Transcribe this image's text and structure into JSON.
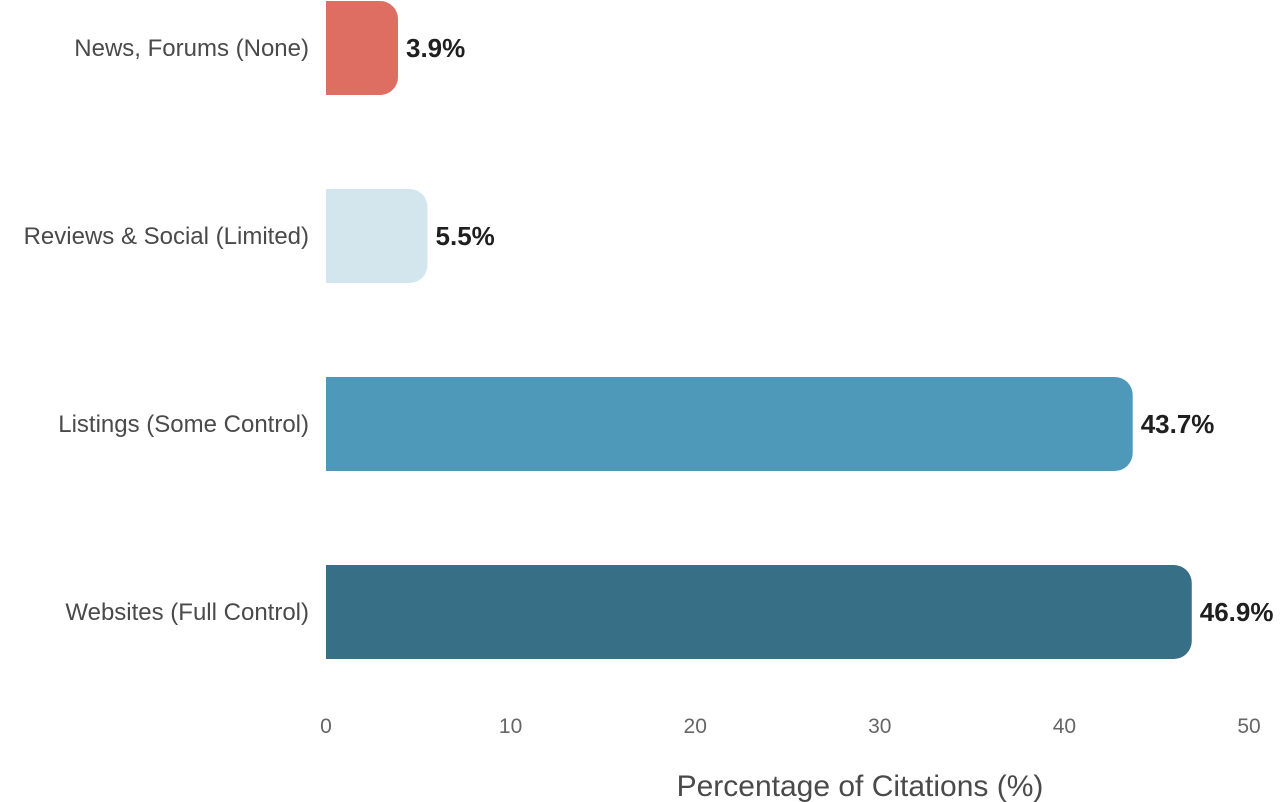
{
  "chart_data": {
    "type": "bar",
    "orientation": "horizontal",
    "categories": [
      "News, Forums (None)",
      "Reviews & Social (Limited)",
      "Listings (Some Control)",
      "Websites (Full Control)"
    ],
    "values": [
      3.9,
      5.5,
      43.7,
      46.9
    ],
    "value_labels": [
      "3.9%",
      "5.5%",
      "43.7%",
      "46.9%"
    ],
    "colors": [
      "#de6e62",
      "#d3e6ee",
      "#4e99ba",
      "#376f86"
    ],
    "xlabel": "Percentage of Citations (%)",
    "xlim": [
      0,
      50
    ],
    "xticks": [
      0,
      10,
      20,
      30,
      40,
      50
    ],
    "grid": false,
    "legend": "none"
  }
}
